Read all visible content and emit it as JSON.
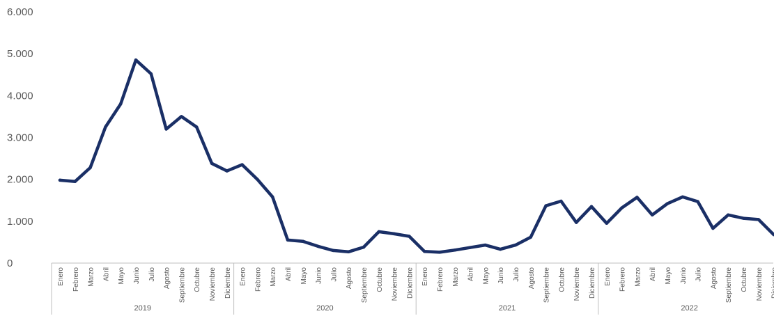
{
  "chart_data": {
    "type": "line",
    "title": "",
    "xlabel": "",
    "ylabel": "",
    "ylim": [
      0,
      6000
    ],
    "yticks": [
      "0",
      "1.000",
      "2.000",
      "3.000",
      "4.000",
      "5.000",
      "6.000"
    ],
    "grid": false,
    "legend": "none",
    "years": [
      "2019",
      "2020",
      "2021",
      "2022"
    ],
    "categories": [
      "Enero",
      "Febrero",
      "Marzo",
      "Abril",
      "Mayo",
      "Junio",
      "Julio",
      "Agosto",
      "Septiembre",
      "Octubre",
      "Noviembre",
      "Diciembre",
      "Enero",
      "Febrero",
      "Marzo",
      "Abril",
      "Mayo",
      "Junio",
      "Julio",
      "Agosto",
      "Septiembre",
      "Octubre",
      "Noviembre",
      "Diciembre",
      "Enero",
      "Febrero",
      "Marzo",
      "Abril",
      "Mayo",
      "Junio",
      "Julio",
      "Agosto",
      "Septiembre",
      "Octubre",
      "Noviembre",
      "Diciembre",
      "Enero",
      "Febrero",
      "Marzo",
      "Abril",
      "Mayo",
      "Junio",
      "Julio",
      "Agosto",
      "Septiembre",
      "Octubre",
      "Noviembre",
      "Diciembre"
    ],
    "series": [
      {
        "color": "#1a2f66",
        "values": [
          1980,
          1950,
          2280,
          3250,
          3800,
          4850,
          4520,
          3200,
          3500,
          3250,
          2380,
          2200,
          2350,
          2000,
          1580,
          550,
          520,
          400,
          300,
          270,
          380,
          750,
          700,
          640,
          280,
          260,
          310,
          370,
          430,
          330,
          430,
          620,
          1370,
          1480,
          970,
          1350,
          950,
          1320,
          1570,
          1150,
          1420,
          1580,
          1470,
          830,
          1150,
          1070,
          1040,
          680
        ]
      }
    ]
  }
}
